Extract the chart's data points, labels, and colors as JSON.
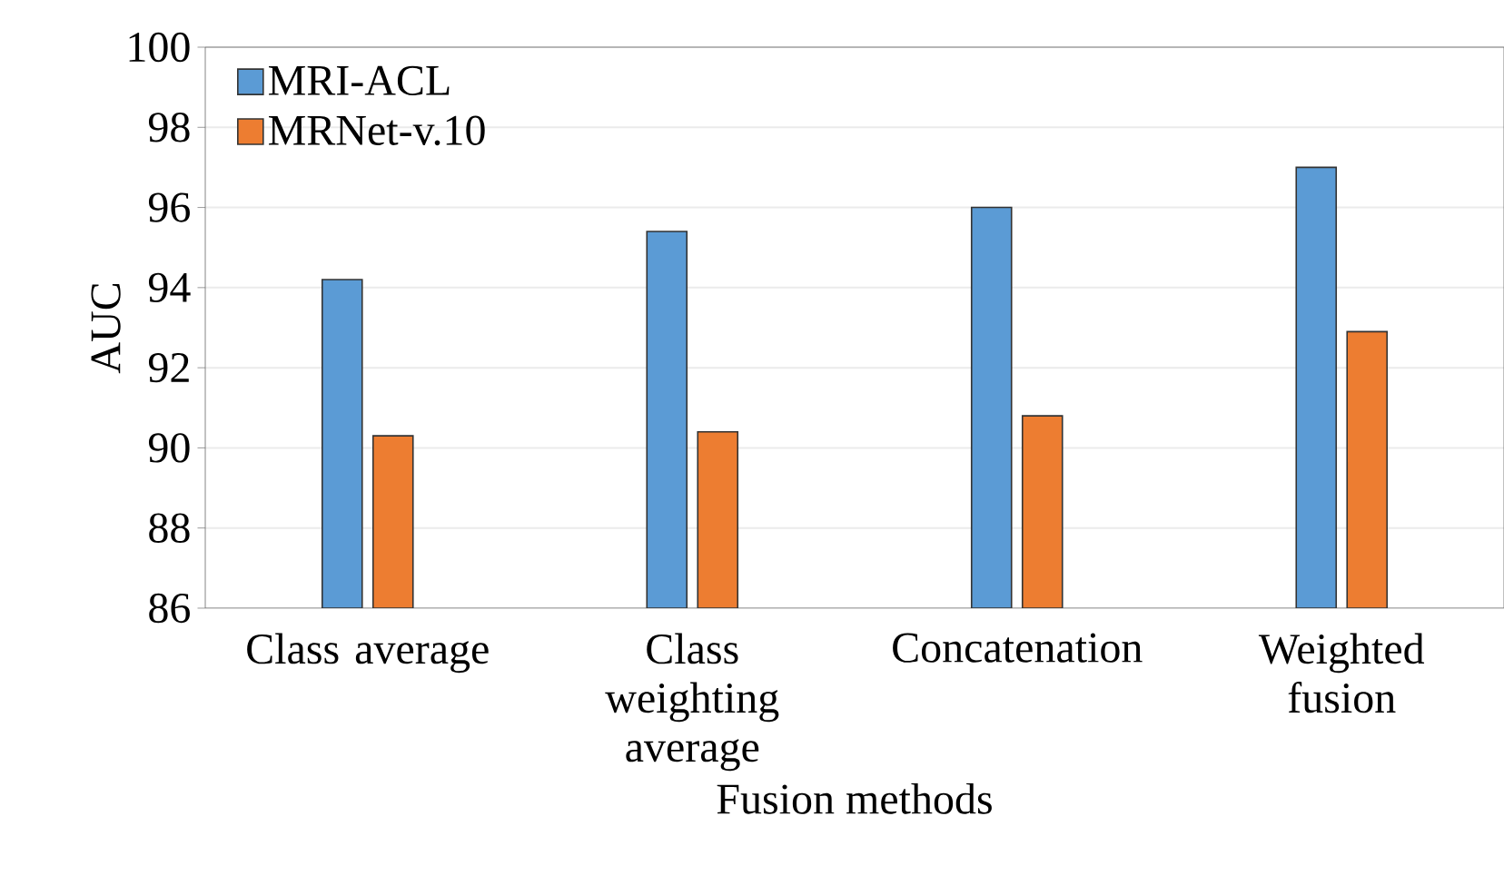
{
  "chart_data": {
    "type": "bar",
    "xlabel": "Fusion methods",
    "ylabel": "AUC",
    "categories": [
      "Class average",
      "Class weighting average",
      "Concatenation",
      "Weighted fusion"
    ],
    "series": [
      {
        "name": "MRI-ACL",
        "color": "#5b9bd5",
        "values": [
          94.2,
          95.4,
          96.0,
          97.0
        ]
      },
      {
        "name": "MRNet-v.10",
        "color": "#ed7d31",
        "values": [
          90.3,
          90.4,
          90.8,
          92.9
        ]
      }
    ],
    "ylim": [
      86,
      100
    ],
    "yticks": [
      86,
      88,
      90,
      92,
      94,
      96,
      98,
      100
    ],
    "grid": "y",
    "legend": "top left"
  }
}
